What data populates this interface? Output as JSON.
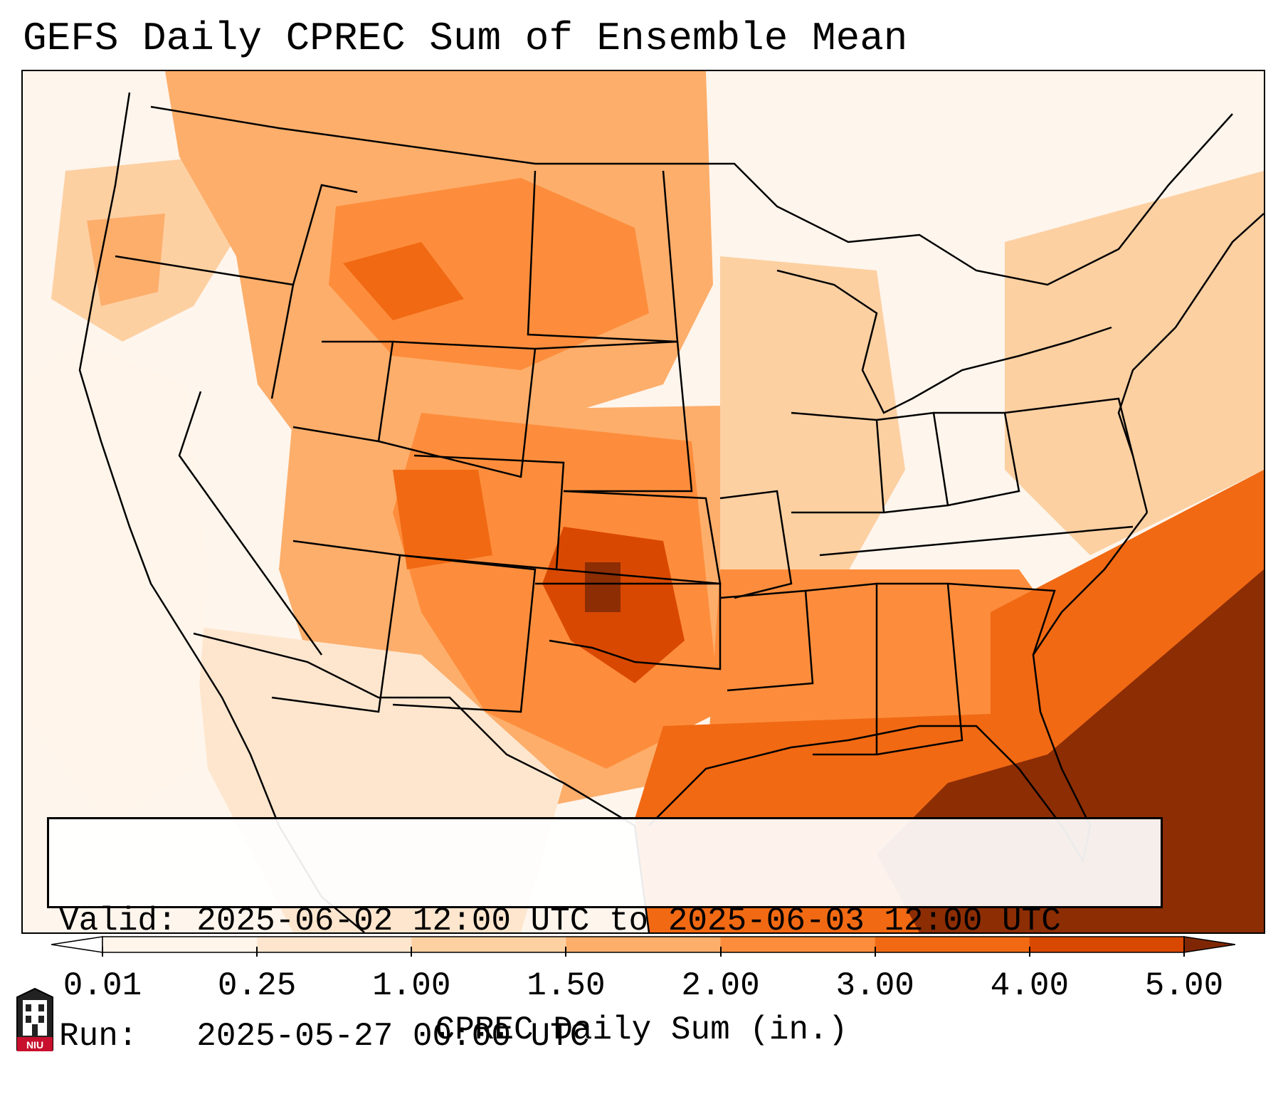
{
  "title": "GEFS Daily CPREC Sum of Ensemble Mean",
  "info": {
    "valid_label": "Valid:",
    "valid_value": "2025-06-02 12:00 UTC to 2025-06-03 12:00 UTC",
    "run_label": "Run:",
    "run_value": "2025-05-27 00:00 UTC"
  },
  "colorbar": {
    "label": "CPREC Daily Sum (in.)",
    "ticks": [
      "0.01",
      "0.25",
      "1.00",
      "1.50",
      "2.00",
      "3.00",
      "4.00",
      "5.00"
    ],
    "colors": [
      "#fff5eb",
      "#fee6ce",
      "#fdd0a2",
      "#fdae6b",
      "#fd8d3c",
      "#f16913",
      "#d94801",
      "#8c2d04"
    ],
    "under_color": "#ffffff",
    "over_color": "#7f2704"
  },
  "logo": {
    "text": "NIU"
  },
  "colors": {
    "background": "#ffffff",
    "map_border": "#000000",
    "boundary_lines": "#000000"
  }
}
